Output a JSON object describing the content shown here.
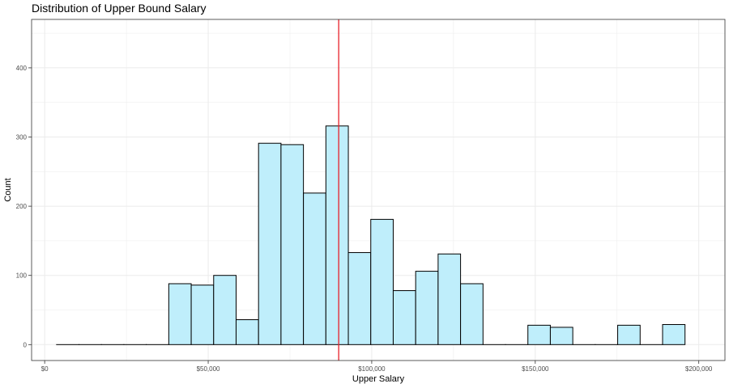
{
  "chart_data": {
    "type": "bar",
    "subtype": "histogram",
    "title": "Distribution of Upper Bound Salary",
    "xlabel": "Upper Salary",
    "ylabel": "Count",
    "xlim": [
      -4000,
      208000
    ],
    "ylim": [
      -23,
      470
    ],
    "x_ticks": [
      {
        "value": 0,
        "label": "$0"
      },
      {
        "value": 50000,
        "label": "$50,000"
      },
      {
        "value": 100000,
        "label": "$100,000"
      },
      {
        "value": 150000,
        "label": "$150,000"
      },
      {
        "value": 200000,
        "label": "$200,000"
      }
    ],
    "y_ticks": [
      {
        "value": 0,
        "label": "0"
      },
      {
        "value": 100,
        "label": "100"
      },
      {
        "value": 200,
        "label": "200"
      },
      {
        "value": 300,
        "label": "300"
      },
      {
        "value": 400,
        "label": "400"
      }
    ],
    "bin_width": 6863,
    "bins": [
      {
        "x0": 3627,
        "x1": 10490,
        "count": 0
      },
      {
        "x0": 10490,
        "x1": 17353,
        "count": 0
      },
      {
        "x0": 17353,
        "x1": 24216,
        "count": 0
      },
      {
        "x0": 24216,
        "x1": 31079,
        "count": 0
      },
      {
        "x0": 31079,
        "x1": 37942,
        "count": 0
      },
      {
        "x0": 37942,
        "x1": 44805,
        "count": 88
      },
      {
        "x0": 44805,
        "x1": 51668,
        "count": 86
      },
      {
        "x0": 51668,
        "x1": 58531,
        "count": 100
      },
      {
        "x0": 58531,
        "x1": 65394,
        "count": 36
      },
      {
        "x0": 65394,
        "x1": 72257,
        "count": 291
      },
      {
        "x0": 72257,
        "x1": 79120,
        "count": 289
      },
      {
        "x0": 79120,
        "x1": 85983,
        "count": 219
      },
      {
        "x0": 85983,
        "x1": 92846,
        "count": 316
      },
      {
        "x0": 92846,
        "x1": 99709,
        "count": 133
      },
      {
        "x0": 99709,
        "x1": 106572,
        "count": 181
      },
      {
        "x0": 106572,
        "x1": 113435,
        "count": 78
      },
      {
        "x0": 113435,
        "x1": 120298,
        "count": 106
      },
      {
        "x0": 120298,
        "x1": 127161,
        "count": 131
      },
      {
        "x0": 127161,
        "x1": 134024,
        "count": 88
      },
      {
        "x0": 134024,
        "x1": 140887,
        "count": 0
      },
      {
        "x0": 140887,
        "x1": 147750,
        "count": 0
      },
      {
        "x0": 147750,
        "x1": 154613,
        "count": 28
      },
      {
        "x0": 154613,
        "x1": 161476,
        "count": 25
      },
      {
        "x0": 161476,
        "x1": 168339,
        "count": 0
      },
      {
        "x0": 168339,
        "x1": 175202,
        "count": 0
      },
      {
        "x0": 175202,
        "x1": 182065,
        "count": 28
      },
      {
        "x0": 182065,
        "x1": 188928,
        "count": 0
      },
      {
        "x0": 188928,
        "x1": 195791,
        "count": 29
      }
    ],
    "vline": {
      "value": 89900,
      "color": "#e8202a"
    },
    "bar_fill": "#bfeefb",
    "bar_stroke": "#000000",
    "grid": true,
    "theme": "bw",
    "legend": "none"
  }
}
